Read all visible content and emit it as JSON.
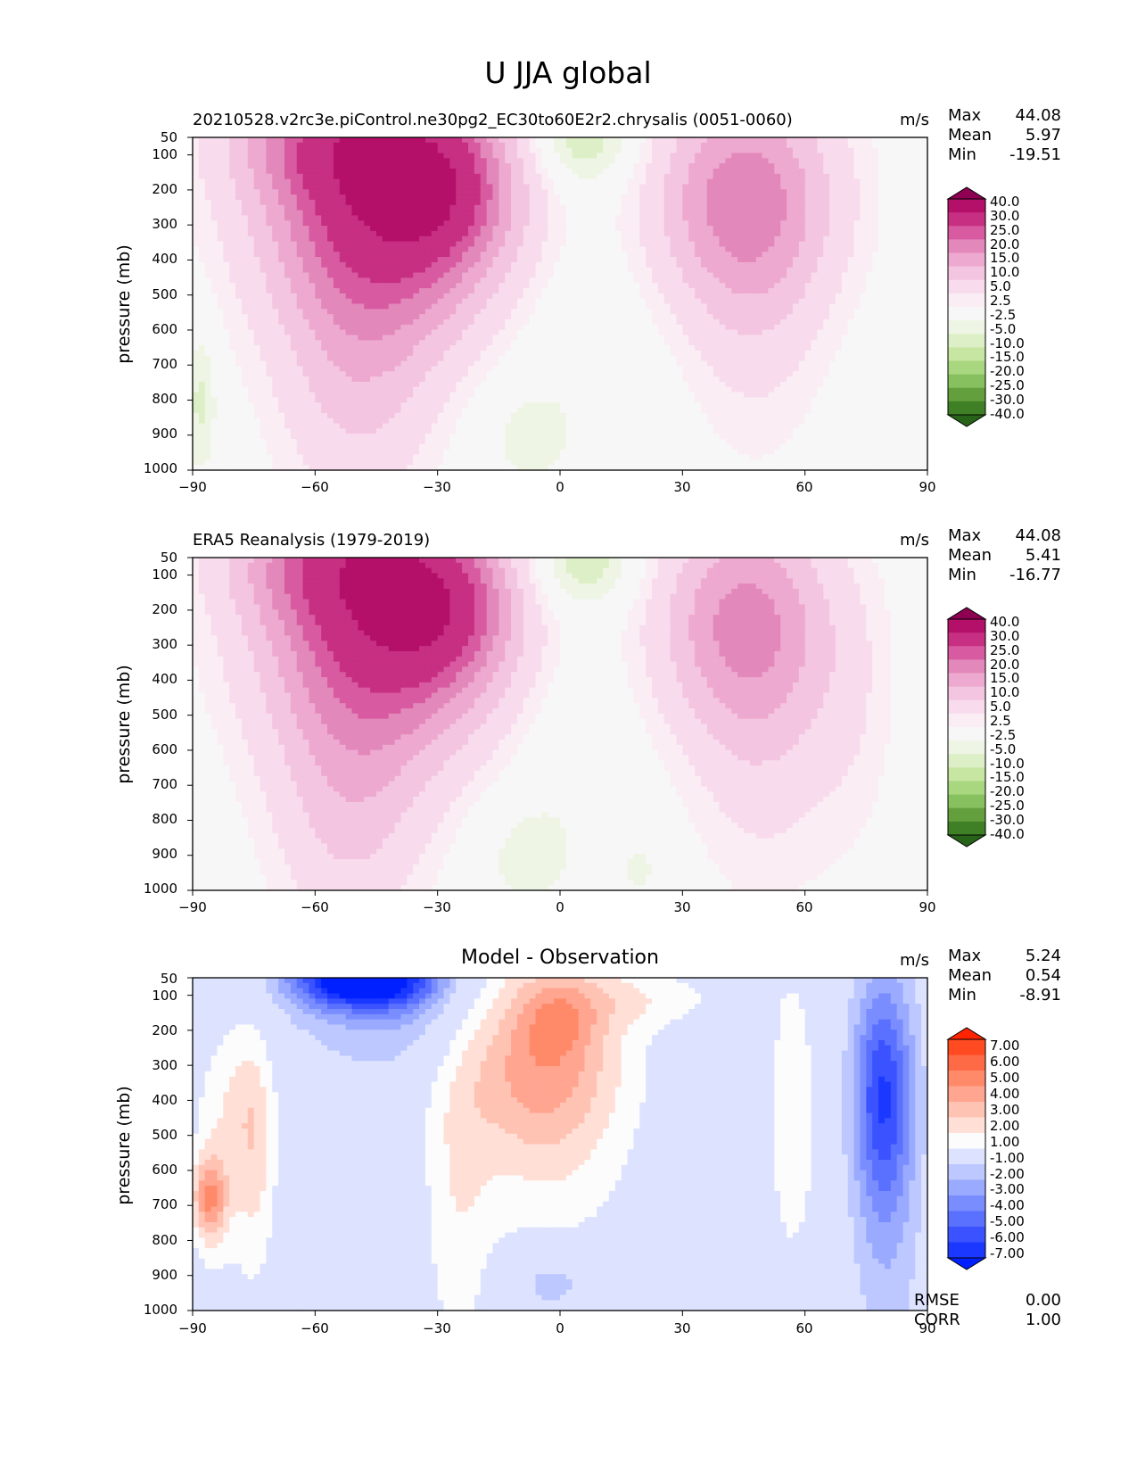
{
  "figure": {
    "title": "U JJA global"
  },
  "chart_data": [
    {
      "type": "heatmap",
      "title": "20210528.v2rc3e.piControl.ne30pg2_EC30to60E2r2.chrysalis (0051-0060)",
      "units": "m/s",
      "xlabel": "",
      "ylabel": "pressure (mb)",
      "xlim": [
        -90,
        90
      ],
      "ylim": [
        1000,
        50
      ],
      "x_ticks": [
        "−90",
        "−60",
        "−30",
        "0",
        "30",
        "60",
        "90"
      ],
      "y_ticks": [
        "50",
        "100",
        "200",
        "300",
        "400",
        "500",
        "600",
        "700",
        "800",
        "900",
        "1000"
      ],
      "stats": {
        "max_label": "Max",
        "max": "44.08",
        "mean_label": "Mean",
        "mean": "5.97",
        "min_label": "Min",
        "min": "-19.51"
      },
      "colorbar": {
        "labels": [
          "40.0",
          "30.0",
          "25.0",
          "20.0",
          "15.0",
          "10.0",
          "5.0",
          "2.5",
          "-2.5",
          "-5.0",
          "-10.0",
          "-15.0",
          "-20.0",
          "-25.0",
          "-30.0",
          "-40.0"
        ],
        "colors": [
          "#8e0152",
          "#b4106a",
          "#c72f82",
          "#d85aa0",
          "#e388bb",
          "#eda9cf",
          "#f4c5e0",
          "#f8dced",
          "#fbedf4",
          "#f7f7f7",
          "#eef5e4",
          "#ddefc7",
          "#c6e6a2",
          "#a9d77f",
          "#87c05f",
          "#649f3d",
          "#3f7f25",
          "#276419"
        ]
      },
      "features": [
        {
          "lon": -40,
          "p": 210,
          "sx": 22,
          "sy": 260,
          "amp": 32
        },
        {
          "lon": -30,
          "p": 205,
          "sx": 11,
          "sy": 130,
          "amp": 12
        },
        {
          "lon": -55,
          "p": 60,
          "sx": 18,
          "sy": 120,
          "amp": 14
        },
        {
          "lon": -48,
          "p": 480,
          "sx": 16,
          "sy": 320,
          "amp": 8
        },
        {
          "lon": -50,
          "p": 820,
          "sx": 13,
          "sy": 260,
          "amp": 6
        },
        {
          "lon": 45,
          "p": 220,
          "sx": 16,
          "sy": 230,
          "amp": 22
        },
        {
          "lon": 48,
          "p": 600,
          "sx": 12,
          "sy": 300,
          "amp": 5
        },
        {
          "lon": 5,
          "p": 70,
          "sx": 10,
          "sy": 90,
          "amp": -8
        },
        {
          "lon": 2,
          "p": 350,
          "sx": 14,
          "sy": 450,
          "amp": -3
        },
        {
          "lon": -10,
          "p": 900,
          "sx": 9,
          "sy": 110,
          "amp": -3
        },
        {
          "lon": -88,
          "p": 800,
          "sx": 3,
          "sy": 150,
          "amp": -6
        }
      ]
    },
    {
      "type": "heatmap",
      "title": "ERA5 Reanalysis (1979-2019)",
      "units": "m/s",
      "xlabel": "",
      "ylabel": "pressure (mb)",
      "xlim": [
        -90,
        90
      ],
      "ylim": [
        1000,
        50
      ],
      "x_ticks": [
        "−90",
        "−60",
        "−30",
        "0",
        "30",
        "60",
        "90"
      ],
      "y_ticks": [
        "50",
        "100",
        "200",
        "300",
        "400",
        "500",
        "600",
        "700",
        "800",
        "900",
        "1000"
      ],
      "stats": {
        "max_label": "Max",
        "max": "44.08",
        "mean_label": "Mean",
        "mean": "5.41",
        "min_label": "Min",
        "min": "-16.77"
      },
      "colorbar": {
        "labels": [
          "40.0",
          "30.0",
          "25.0",
          "20.0",
          "15.0",
          "10.0",
          "5.0",
          "2.5",
          "-2.5",
          "-5.0",
          "-10.0",
          "-15.0",
          "-20.0",
          "-25.0",
          "-30.0",
          "-40.0"
        ],
        "colors": [
          "#8e0152",
          "#b4106a",
          "#c72f82",
          "#d85aa0",
          "#e388bb",
          "#eda9cf",
          "#f4c5e0",
          "#f8dced",
          "#fbedf4",
          "#f7f7f7",
          "#eef5e4",
          "#ddefc7",
          "#c6e6a2",
          "#a9d77f",
          "#87c05f",
          "#649f3d",
          "#3f7f25",
          "#276419"
        ]
      },
      "features": [
        {
          "lon": -40,
          "p": 210,
          "sx": 22,
          "sy": 260,
          "amp": 30
        },
        {
          "lon": -30,
          "p": 205,
          "sx": 11,
          "sy": 130,
          "amp": 12
        },
        {
          "lon": -55,
          "p": 60,
          "sx": 18,
          "sy": 120,
          "amp": 14
        },
        {
          "lon": -50,
          "p": 500,
          "sx": 16,
          "sy": 340,
          "amp": 8
        },
        {
          "lon": -52,
          "p": 830,
          "sx": 12,
          "sy": 240,
          "amp": 6
        },
        {
          "lon": 45,
          "p": 230,
          "sx": 15,
          "sy": 230,
          "amp": 20
        },
        {
          "lon": 50,
          "p": 600,
          "sx": 13,
          "sy": 320,
          "amp": 6
        },
        {
          "lon": 72,
          "p": 500,
          "sx": 8,
          "sy": 300,
          "amp": 3
        },
        {
          "lon": 5,
          "p": 70,
          "sx": 10,
          "sy": 90,
          "amp": -8
        },
        {
          "lon": 0,
          "p": 350,
          "sx": 12,
          "sy": 450,
          "amp": -3
        },
        {
          "lon": -10,
          "p": 900,
          "sx": 9,
          "sy": 120,
          "amp": -3
        },
        {
          "lon": 20,
          "p": 940,
          "sx": 4,
          "sy": 70,
          "amp": -3
        }
      ]
    },
    {
      "type": "heatmap",
      "title": "Model - Observation",
      "units": "m/s",
      "xlabel": "",
      "ylabel": "pressure (mb)",
      "xlim": [
        -90,
        90
      ],
      "ylim": [
        1000,
        50
      ],
      "x_ticks": [
        "−90",
        "−60",
        "−30",
        "0",
        "30",
        "60",
        "90"
      ],
      "y_ticks": [
        "50",
        "100",
        "200",
        "300",
        "400",
        "500",
        "600",
        "700",
        "800",
        "900",
        "1000"
      ],
      "stats": {
        "max_label": "Max",
        "max": "5.24",
        "mean_label": "Mean",
        "mean": "0.54",
        "min_label": "Min",
        "min": "-8.91"
      },
      "rmse_label": "RMSE",
      "rmse": "0.00",
      "corr_label": "CORR",
      "corr": "1.00",
      "colorbar": {
        "labels": [
          "7.00",
          "6.00",
          "5.00",
          "4.00",
          "3.00",
          "2.00",
          "1.00",
          "-1.00",
          "-2.00",
          "-3.00",
          "-4.00",
          "-5.00",
          "-6.00",
          "-7.00"
        ],
        "colors": [
          "#ff2400",
          "#ff4a22",
          "#ff6a46",
          "#ff8a6a",
          "#ffa590",
          "#ffc3b4",
          "#ffdfd6",
          "#fcfcfc",
          "#dde3ff",
          "#bcc8ff",
          "#9aaaff",
          "#7a8dff",
          "#5a70ff",
          "#3a52ff",
          "#1a38ff",
          "#0020ff"
        ]
      },
      "features": [
        {
          "lon": -48,
          "p": 50,
          "sx": 12,
          "sy": 60,
          "amp": -9
        },
        {
          "lon": -40,
          "p": 150,
          "sx": 18,
          "sy": 130,
          "amp": -2
        },
        {
          "lon": -5,
          "p": 250,
          "sx": 14,
          "sy": 200,
          "amp": 4
        },
        {
          "lon": 0,
          "p": 170,
          "sx": 6,
          "sy": 70,
          "amp": 1.5
        },
        {
          "lon": -3,
          "p": 520,
          "sx": 15,
          "sy": 280,
          "amp": 1.5
        },
        {
          "lon": -25,
          "p": 700,
          "sx": 6,
          "sy": 400,
          "amp": 1.5
        },
        {
          "lon": 57,
          "p": 450,
          "sx": 5,
          "sy": 350,
          "amp": 1.6
        },
        {
          "lon": 79,
          "p": 380,
          "sx": 5,
          "sy": 220,
          "amp": -4.5
        },
        {
          "lon": 80,
          "p": 600,
          "sx": 6,
          "sy": 450,
          "amp": -2
        },
        {
          "lon": -86,
          "p": 680,
          "sx": 3,
          "sy": 80,
          "amp": 4
        },
        {
          "lon": -85,
          "p": 600,
          "sx": 4,
          "sy": 250,
          "amp": 1.5
        },
        {
          "lon": -75,
          "p": 600,
          "sx": 4,
          "sy": 250,
          "amp": 2
        },
        {
          "lon": -77,
          "p": 380,
          "sx": 5,
          "sy": 180,
          "amp": 1.5
        },
        {
          "lon": -2,
          "p": 920,
          "sx": 8,
          "sy": 70,
          "amp": -1.8
        },
        {
          "lon": 20,
          "p": 110,
          "sx": 15,
          "sy": 60,
          "amp": 1.4
        }
      ]
    }
  ]
}
